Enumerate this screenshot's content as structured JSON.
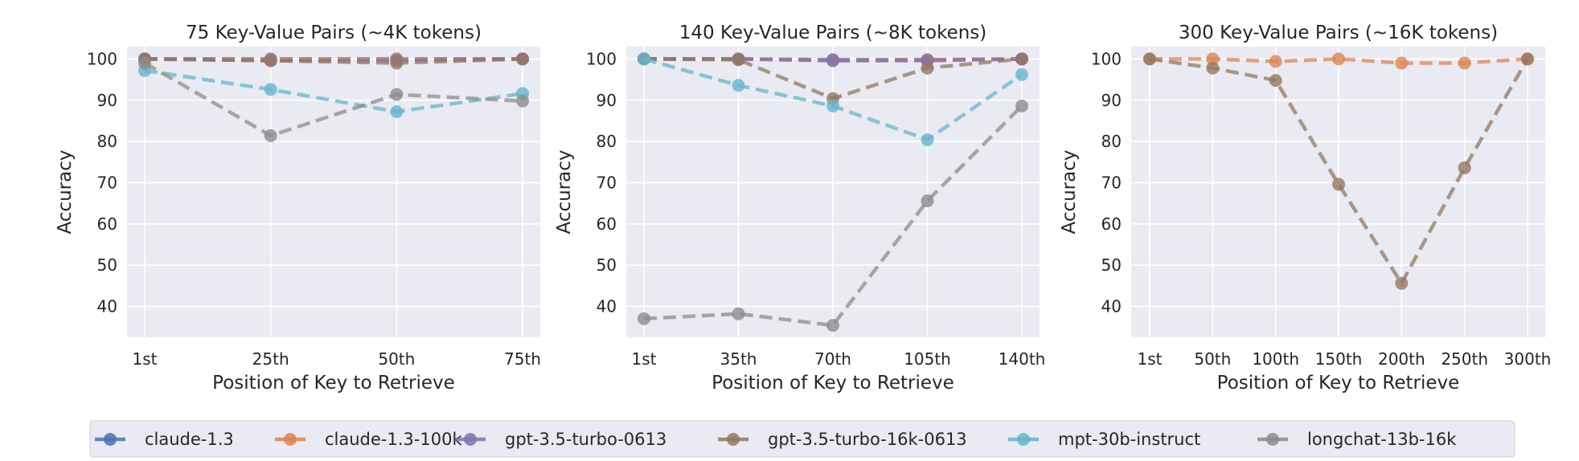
{
  "chart_data": [
    {
      "type": "line",
      "title": "75 Key-Value Pairs (~4K tokens)",
      "xlabel": "Position of Key to Retrieve",
      "ylabel": "Accuracy",
      "categories": [
        "1st",
        "25th",
        "50th",
        "75th"
      ],
      "ylim": [
        32.5,
        103
      ],
      "yticks": [
        40,
        50,
        60,
        70,
        80,
        90,
        100
      ],
      "grid": true,
      "series": [
        {
          "name": "claude-1.3",
          "color": "#4c72b0",
          "values": [
            100,
            100,
            100,
            100
          ]
        },
        {
          "name": "claude-1.3-100k",
          "color": "#dd8452",
          "values": [
            100,
            99.8,
            100,
            100
          ]
        },
        {
          "name": "gpt-3.5-turbo-0613",
          "color": "#8172b3",
          "values": [
            100,
            99.6,
            99.6,
            100
          ]
        },
        {
          "name": "gpt-3.5-turbo-16k-0613",
          "color": "#937860",
          "values": [
            100,
            99.6,
            99,
            100
          ]
        },
        {
          "name": "mpt-30b-instruct",
          "color": "#64b5cd",
          "values": [
            97.2,
            92.6,
            87.2,
            91.6
          ]
        },
        {
          "name": "longchat-13b-16k",
          "color": "#8c8c8c",
          "values": [
            99,
            81.4,
            91.4,
            89.8
          ]
        }
      ]
    },
    {
      "type": "line",
      "title": "140 Key-Value Pairs (~8K tokens)",
      "xlabel": "Position of Key to Retrieve",
      "ylabel": "Accuracy",
      "categories": [
        "1st",
        "35th",
        "70th",
        "105th",
        "140th"
      ],
      "ylim": [
        32.5,
        103
      ],
      "yticks": [
        40,
        50,
        60,
        70,
        80,
        90,
        100
      ],
      "grid": true,
      "series": [
        {
          "name": "claude-1.3",
          "color": "#4c72b0",
          "values": [
            100,
            100,
            99.8,
            99.8,
            100
          ]
        },
        {
          "name": "claude-1.3-100k",
          "color": "#dd8452",
          "values": [
            100,
            100,
            99.6,
            99.8,
            100
          ]
        },
        {
          "name": "gpt-3.5-turbo-0613",
          "color": "#8172b3",
          "values": [
            100,
            100,
            99.6,
            99.6,
            100
          ]
        },
        {
          "name": "gpt-3.5-turbo-16k-0613",
          "color": "#937860",
          "values": [
            100,
            99.8,
            90.4,
            97.8,
            100
          ]
        },
        {
          "name": "mpt-30b-instruct",
          "color": "#64b5cd",
          "values": [
            100,
            93.6,
            88.6,
            80.4,
            96.2
          ]
        },
        {
          "name": "longchat-13b-16k",
          "color": "#8c8c8c",
          "values": [
            37,
            38.2,
            35.4,
            65.6,
            88.6
          ]
        }
      ]
    },
    {
      "type": "line",
      "title": "300 Key-Value Pairs (~16K tokens)",
      "xlabel": "Position of Key to Retrieve",
      "ylabel": "Accuracy",
      "categories": [
        "1st",
        "50th",
        "100th",
        "150th",
        "200th",
        "250th",
        "300th"
      ],
      "ylim": [
        32.5,
        103
      ],
      "yticks": [
        40,
        50,
        60,
        70,
        80,
        90,
        100
      ],
      "grid": true,
      "series": [
        {
          "name": "claude-1.3-100k",
          "color": "#dd8452",
          "values": [
            100,
            100,
            99.4,
            100,
            99,
            99,
            100
          ]
        },
        {
          "name": "gpt-3.5-turbo-16k-0613",
          "color": "#937860",
          "values": [
            100,
            97.8,
            94.8,
            69.6,
            45.6,
            73.6,
            100
          ]
        }
      ]
    }
  ],
  "legend": {
    "placement": "bottom-center",
    "items": [
      {
        "name": "claude-1.3",
        "color": "#4c72b0"
      },
      {
        "name": "claude-1.3-100k",
        "color": "#dd8452"
      },
      {
        "name": "gpt-3.5-turbo-0613",
        "color": "#8172b3"
      },
      {
        "name": "gpt-3.5-turbo-16k-0613",
        "color": "#937860"
      },
      {
        "name": "mpt-30b-instruct",
        "color": "#64b5cd"
      },
      {
        "name": "longchat-13b-16k",
        "color": "#8c8c8c"
      }
    ]
  }
}
